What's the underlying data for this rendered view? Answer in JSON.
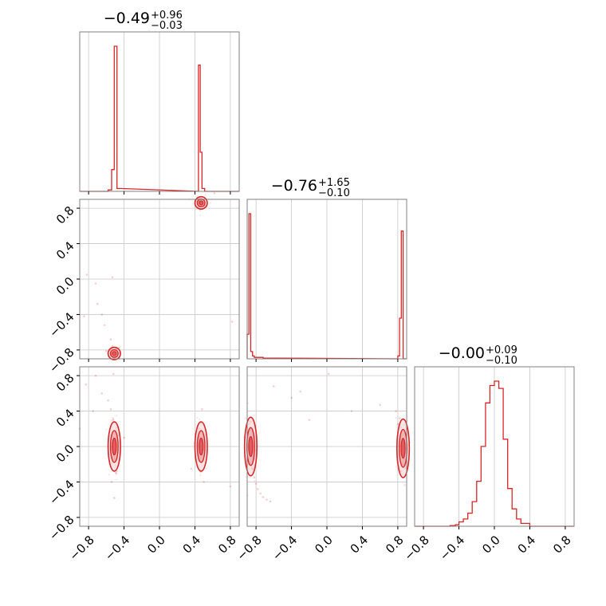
{
  "chart_data": {
    "type": "corner",
    "color": "#d62728",
    "range": [
      -0.9,
      0.9
    ],
    "ticks": [
      -0.8,
      -0.4,
      0.0,
      0.4,
      0.8
    ],
    "tick_labels": [
      "−0.8",
      "−0.4",
      "0.0",
      "0.4",
      "0.8"
    ],
    "grid": true,
    "parameters": [
      {
        "title_main": "−0.49",
        "title_sup": "+0.96",
        "title_sub": "−0.03"
      },
      {
        "title_main": "−0.76",
        "title_sup": "+1.65",
        "title_sub": "−0.10"
      },
      {
        "title_main": "−0.00",
        "title_sup": "+0.09",
        "title_sub": "−0.10"
      }
    ],
    "histograms": [
      {
        "bins": [
          [
            -0.58,
            -0.54
          ],
          [
            -0.54,
            -0.51
          ],
          [
            -0.51,
            -0.48
          ],
          [
            -0.48,
            -0.44
          ],
          [
            0.44,
            0.46
          ],
          [
            0.46,
            0.48
          ],
          [
            0.48,
            0.51
          ],
          [
            0.51,
            0.54
          ]
        ],
        "counts": [
          0.01,
          0.15,
          1.0,
          0.02,
          0.87,
          0.27,
          0.02,
          0.0
        ]
      },
      {
        "bins": [
          [
            -0.9,
            -0.88
          ],
          [
            -0.88,
            -0.86
          ],
          [
            -0.86,
            -0.84
          ],
          [
            -0.84,
            -0.82
          ],
          [
            -0.82,
            -0.78
          ],
          [
            -0.78,
            -0.72
          ],
          [
            -0.72,
            -0.6
          ],
          [
            0.8,
            0.82
          ],
          [
            0.82,
            0.84
          ],
          [
            0.84,
            0.86
          ],
          [
            0.86,
            0.88
          ]
        ],
        "counts": [
          0.17,
          1.0,
          0.05,
          0.02,
          0.01,
          0.01,
          0.005,
          0.02,
          0.28,
          0.88,
          0.0
        ]
      },
      {
        "bins": [
          [
            -0.8,
            -0.5
          ],
          [
            -0.5,
            -0.44
          ],
          [
            -0.44,
            -0.4
          ],
          [
            -0.4,
            -0.35
          ],
          [
            -0.35,
            -0.3
          ],
          [
            -0.3,
            -0.25
          ],
          [
            -0.25,
            -0.2
          ],
          [
            -0.2,
            -0.15
          ],
          [
            -0.15,
            -0.1
          ],
          [
            -0.1,
            -0.05
          ],
          [
            -0.05,
            0.0
          ],
          [
            0.0,
            0.05
          ],
          [
            0.05,
            0.1
          ],
          [
            0.1,
            0.15
          ],
          [
            0.15,
            0.2
          ],
          [
            0.2,
            0.25
          ],
          [
            0.25,
            0.3
          ],
          [
            0.3,
            0.4
          ],
          [
            0.4,
            0.8
          ]
        ],
        "counts": [
          0.0,
          0.005,
          0.01,
          0.03,
          0.05,
          0.09,
          0.17,
          0.31,
          0.55,
          0.85,
          0.97,
          1.0,
          0.95,
          0.6,
          0.26,
          0.12,
          0.05,
          0.02,
          0.0
        ]
      }
    ],
    "pairs": [
      {
        "row": 1,
        "col": 0,
        "modes": [
          {
            "x": -0.51,
            "y": -0.84,
            "sx": 0.02,
            "sy": 0.02
          },
          {
            "x": 0.47,
            "y": 0.86,
            "sx": 0.02,
            "sy": 0.02
          }
        ],
        "scatter": [
          [
            -0.62,
            -0.52
          ],
          [
            -0.55,
            -0.68
          ],
          [
            -0.53,
            -0.76
          ],
          [
            -0.56,
            -0.8
          ],
          [
            -0.49,
            -0.79
          ],
          [
            -0.6,
            -0.81
          ],
          [
            -0.5,
            -0.87
          ],
          [
            0.5,
            0.8
          ],
          [
            0.52,
            0.83
          ],
          [
            0.45,
            0.91
          ],
          [
            -0.82,
            0.05
          ],
          [
            -0.72,
            -0.05
          ],
          [
            -0.53,
            0.02
          ],
          [
            -0.85,
            -0.42
          ],
          [
            -0.7,
            -0.28
          ],
          [
            0.82,
            -0.48
          ],
          [
            0.62,
            0.97
          ],
          [
            -0.65,
            -0.4
          ]
        ]
      },
      {
        "row": 2,
        "col": 0,
        "modes": [
          {
            "x": -0.51,
            "y": 0.0,
            "sx": 0.02,
            "sy": 0.1
          },
          {
            "x": 0.47,
            "y": 0.0,
            "sx": 0.02,
            "sy": 0.1
          }
        ],
        "scatter": [
          [
            -0.52,
            0.3
          ],
          [
            -0.54,
            -0.4
          ],
          [
            -0.51,
            -0.58
          ],
          [
            -0.55,
            0.42
          ],
          [
            -0.49,
            -0.3
          ],
          [
            0.48,
            0.42
          ],
          [
            0.5,
            -0.4
          ],
          [
            0.46,
            -0.28
          ],
          [
            -0.72,
            0.8
          ],
          [
            -0.83,
            0.7
          ],
          [
            -0.65,
            0.6
          ],
          [
            -0.58,
            0.52
          ],
          [
            -0.4,
            0.1
          ],
          [
            0.36,
            -0.25
          ],
          [
            0.8,
            -0.45
          ],
          [
            -0.9,
            0.2
          ],
          [
            -0.75,
            0.4
          ],
          [
            -0.52,
            0.82
          ]
        ]
      },
      {
        "row": 2,
        "col": 1,
        "modes": [
          {
            "x": -0.86,
            "y": 0.0,
            "sx": 0.02,
            "sy": 0.12
          },
          {
            "x": 0.86,
            "y": -0.02,
            "sx": 0.02,
            "sy": 0.12
          }
        ],
        "scatter": [
          [
            -0.84,
            -0.25
          ],
          [
            -0.82,
            -0.35
          ],
          [
            -0.8,
            -0.42
          ],
          [
            -0.78,
            -0.48
          ],
          [
            -0.75,
            -0.53
          ],
          [
            -0.72,
            -0.57
          ],
          [
            -0.68,
            -0.6
          ],
          [
            -0.64,
            -0.62
          ],
          [
            -0.86,
            0.28
          ],
          [
            -0.88,
            -0.2
          ],
          [
            0.8,
            0.25
          ],
          [
            0.82,
            0.32
          ],
          [
            0.78,
            0.4
          ],
          [
            0.84,
            -0.28
          ],
          [
            0.86,
            -0.2
          ],
          [
            -0.4,
            0.55
          ],
          [
            -0.3,
            0.62
          ],
          [
            0.02,
            0.82
          ],
          [
            0.28,
            0.4
          ],
          [
            -0.2,
            0.3
          ],
          [
            0.6,
            0.47
          ],
          [
            -0.6,
            0.68
          ]
        ]
      }
    ]
  }
}
